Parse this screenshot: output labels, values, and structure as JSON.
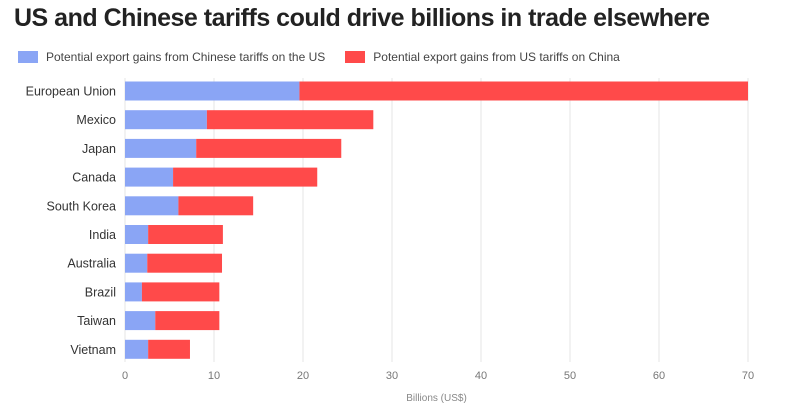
{
  "chart_data": {
    "type": "bar",
    "orientation": "horizontal",
    "stacked": true,
    "title": "US and Chinese tariffs could drive billions in trade elsewhere",
    "xlabel": "Billions (US$)",
    "ylabel": "",
    "xlim": [
      0,
      70
    ],
    "xticks": [
      "0",
      "10",
      "20",
      "30",
      "40",
      "50",
      "60",
      "70"
    ],
    "grid": true,
    "legend_placement": "top-left",
    "categories": [
      "European Union",
      "Mexico",
      "Japan",
      "Canada",
      "South Korea",
      "India",
      "Australia",
      "Brazil",
      "Taiwan",
      "Vietnam"
    ],
    "series": [
      {
        "name": "Potential export gains from Chinese tariffs on the US",
        "color": "#8aa5f5",
        "values": [
          19.6,
          9.2,
          8.0,
          5.4,
          6.0,
          2.6,
          2.5,
          1.9,
          3.4,
          2.6
        ]
      },
      {
        "name": "Potential export gains from US tariffs on China",
        "color": "#ff4a4a",
        "values": [
          50.4,
          18.7,
          16.3,
          16.2,
          8.4,
          8.4,
          8.4,
          8.7,
          7.2,
          4.7
        ]
      }
    ]
  }
}
